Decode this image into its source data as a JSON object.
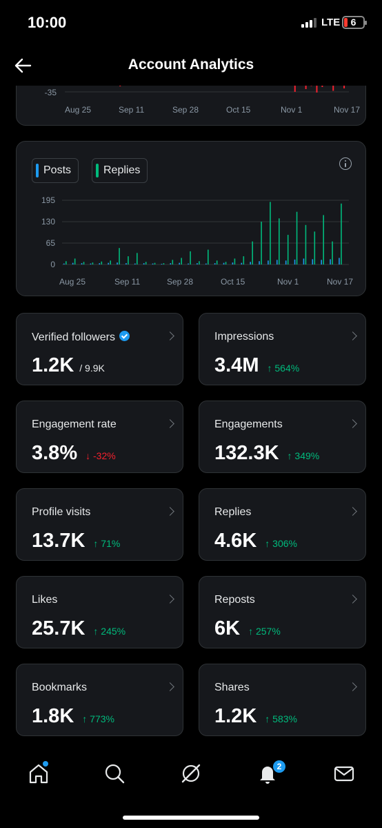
{
  "status_bar": {
    "time": "10:00",
    "network": "LTE",
    "battery": "6"
  },
  "header": {
    "title": "Account Analytics"
  },
  "chart_data": [
    {
      "type": "bar",
      "title": "",
      "y_tick_labels": [
        "-35"
      ],
      "x_tick_labels": [
        "Aug 25",
        "Sep 11",
        "Sep 28",
        "Oct 15",
        "Nov 1",
        "Nov 17"
      ],
      "series": [
        {
          "values": [
            0,
            0,
            0,
            0,
            0,
            0,
            0,
            0,
            0,
            0,
            -12,
            -4,
            0,
            0,
            0,
            0,
            0,
            0,
            0,
            0,
            0,
            0,
            0,
            0,
            0,
            0,
            0,
            0,
            0,
            0,
            0,
            0,
            0,
            0,
            0,
            0,
            0,
            0,
            0,
            0,
            0,
            -9,
            -28,
            -6,
            -20,
            -11,
            -30,
            -14,
            -9,
            -25,
            -7,
            -18
          ]
        }
      ],
      "colors": {
        "negative": "#f4212e"
      }
    },
    {
      "type": "bar",
      "title": "",
      "legend": [
        "Posts",
        "Replies"
      ],
      "legend_colors": {
        "Posts": "#1d9bf0",
        "Replies": "#00ba7c"
      },
      "y_tick_labels": [
        "195",
        "130",
        "65",
        "0"
      ],
      "ylim": [
        0,
        195
      ],
      "x_tick_labels": [
        "Aug 25",
        "Sep 11",
        "Sep 28",
        "Oct 15",
        "Nov 1",
        "Nov 17"
      ],
      "x": [
        "Aug 25",
        "Aug 28",
        "Aug 31",
        "Sep 3",
        "Sep 6",
        "Sep 9",
        "Sep 11",
        "Sep 14",
        "Sep 17",
        "Sep 20",
        "Sep 23",
        "Sep 26",
        "Sep 28",
        "Oct 1",
        "Oct 4",
        "Oct 7",
        "Oct 10",
        "Oct 13",
        "Oct 15",
        "Oct 18",
        "Oct 21",
        "Oct 24",
        "Oct 27",
        "Oct 30",
        "Nov 1",
        "Nov 4",
        "Nov 7",
        "Nov 10",
        "Nov 13",
        "Nov 16",
        "Nov 17",
        "Nov 20"
      ],
      "series": [
        {
          "name": "Posts",
          "values": [
            3,
            5,
            4,
            3,
            4,
            5,
            6,
            4,
            3,
            4,
            3,
            2,
            4,
            5,
            3,
            4,
            3,
            4,
            5,
            6,
            5,
            8,
            10,
            12,
            14,
            12,
            15,
            18,
            16,
            14,
            16,
            20
          ]
        },
        {
          "name": "Replies",
          "values": [
            10,
            18,
            8,
            6,
            9,
            12,
            50,
            25,
            35,
            8,
            5,
            4,
            14,
            20,
            40,
            10,
            45,
            12,
            8,
            18,
            25,
            70,
            130,
            190,
            140,
            90,
            160,
            120,
            100,
            150,
            70,
            185
          ]
        }
      ]
    }
  ],
  "stats": [
    {
      "label": "Verified followers",
      "value": "1.2K",
      "sub": "/ 9.9K",
      "change": "",
      "direction": "",
      "verified": true
    },
    {
      "label": "Impressions",
      "value": "3.4M",
      "sub": "",
      "change": "↑ 564%",
      "direction": "up"
    },
    {
      "label": "Engagement rate",
      "value": "3.8%",
      "sub": "",
      "change": "↓ -32%",
      "direction": "down"
    },
    {
      "label": "Engagements",
      "value": "132.3K",
      "sub": "",
      "change": "↑ 349%",
      "direction": "up"
    },
    {
      "label": "Profile visits",
      "value": "13.7K",
      "sub": "",
      "change": "↑ 71%",
      "direction": "up"
    },
    {
      "label": "Replies",
      "value": "4.6K",
      "sub": "",
      "change": "↑ 306%",
      "direction": "up"
    },
    {
      "label": "Likes",
      "value": "25.7K",
      "sub": "",
      "change": "↑ 245%",
      "direction": "up"
    },
    {
      "label": "Reposts",
      "value": "6K",
      "sub": "",
      "change": "↑ 257%",
      "direction": "up"
    },
    {
      "label": "Bookmarks",
      "value": "1.8K",
      "sub": "",
      "change": "↑ 773%",
      "direction": "up"
    },
    {
      "label": "Shares",
      "value": "1.2K",
      "sub": "",
      "change": "↑ 583%",
      "direction": "up"
    }
  ],
  "tabbar": {
    "items": [
      "home-icon",
      "search-icon",
      "grok-icon",
      "notifications-icon",
      "messages-icon"
    ],
    "notification_count": "2"
  }
}
